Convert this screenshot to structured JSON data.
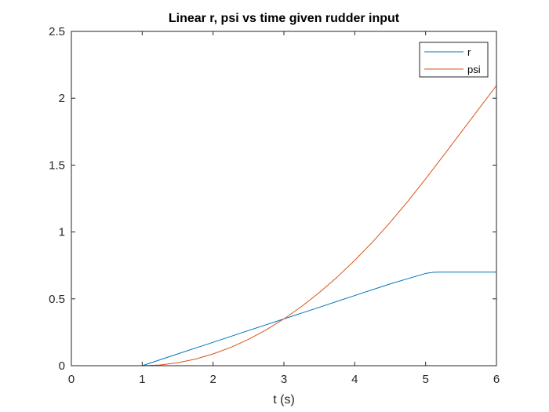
{
  "chart_data": {
    "type": "line",
    "title": "Linear r, psi vs time given rudder input",
    "xlabel": "t (s)",
    "ylabel": "",
    "xlim": [
      0,
      6
    ],
    "ylim": [
      0,
      2.5
    ],
    "xticks": [
      0,
      1,
      2,
      3,
      4,
      5,
      6
    ],
    "xtick_labels": [
      "0",
      "1",
      "2",
      "3",
      "4",
      "5",
      "6"
    ],
    "yticks": [
      0,
      0.5,
      1,
      1.5,
      2,
      2.5
    ],
    "ytick_labels": [
      "0",
      "0.5",
      "1",
      "1.5",
      "2",
      "2.5"
    ],
    "grid": false,
    "legend_position": "top-right",
    "series": [
      {
        "name": "r",
        "color": "#0072BD",
        "x": [
          0,
          1.0,
          1.5,
          2.0,
          2.5,
          3.0,
          3.5,
          4.0,
          4.5,
          5.0,
          5.1,
          5.2,
          6.0
        ],
        "y": [
          0,
          0,
          0.088,
          0.175,
          0.263,
          0.35,
          0.437,
          0.525,
          0.612,
          0.69,
          0.698,
          0.7,
          0.7
        ]
      },
      {
        "name": "psi",
        "color": "#D95319",
        "x": [
          0,
          1.0,
          1.25,
          1.5,
          1.75,
          2.0,
          2.25,
          2.5,
          2.75,
          3.0,
          3.25,
          3.5,
          3.75,
          4.0,
          4.25,
          4.5,
          4.75,
          5.0,
          5.25,
          5.5,
          5.75,
          6.0
        ],
        "y": [
          0,
          0,
          0.005,
          0.022,
          0.049,
          0.088,
          0.137,
          0.197,
          0.268,
          0.35,
          0.443,
          0.547,
          0.662,
          0.788,
          0.924,
          1.072,
          1.23,
          1.397,
          1.57,
          1.745,
          1.92,
          2.095
        ]
      }
    ]
  }
}
